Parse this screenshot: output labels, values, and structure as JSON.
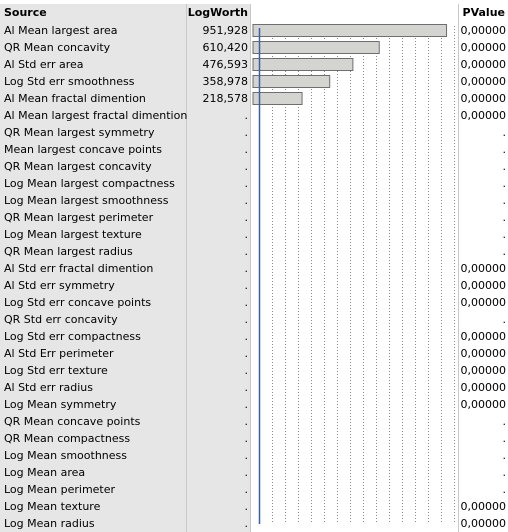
{
  "headers": {
    "source": "Source",
    "logworth": "LogWorth",
    "pvalue": "PValue"
  },
  "colors": {
    "bar_fill": "#d4d4d0",
    "bar_stroke": "#6e6e6e",
    "reference_line": "#3c5fa8",
    "grid": "#8c8c8c"
  },
  "chart_data": {
    "type": "bar",
    "orientation": "horizontal",
    "x_max": 1000,
    "categories": [
      "Al Mean largest area",
      "QR Mean concavity",
      "Al Std err area",
      "Log Std err smoothness",
      "Al Mean fractal dimention"
    ],
    "values": [
      951.928,
      610.42,
      476.593,
      358.978,
      218.578
    ],
    "grid": true
  },
  "rows": [
    {
      "source": "Al Mean largest area",
      "logworth": "951,928",
      "pvalue": "0,00000"
    },
    {
      "source": "QR Mean concavity",
      "logworth": "610,420",
      "pvalue": "0,00000"
    },
    {
      "source": "Al Std err area",
      "logworth": "476,593",
      "pvalue": "0,00000"
    },
    {
      "source": "Log Std err smoothness",
      "logworth": "358,978",
      "pvalue": "0,00000"
    },
    {
      "source": "Al Mean fractal dimention",
      "logworth": "218,578",
      "pvalue": "0,00000"
    },
    {
      "source": "Al Mean largest fractal dimention",
      "logworth": ".",
      "pvalue": "0,00000"
    },
    {
      "source": "QR Mean largest symmetry",
      "logworth": ".",
      "pvalue": "."
    },
    {
      "source": "Mean largest concave points",
      "logworth": ".",
      "pvalue": "."
    },
    {
      "source": "QR Mean largest concavity",
      "logworth": ".",
      "pvalue": "."
    },
    {
      "source": "Log Mean largest compactness",
      "logworth": ".",
      "pvalue": "."
    },
    {
      "source": "Log Mean largest smoothness",
      "logworth": ".",
      "pvalue": "."
    },
    {
      "source": "QR Mean largest perimeter",
      "logworth": ".",
      "pvalue": "."
    },
    {
      "source": "Log Mean largest texture",
      "logworth": ".",
      "pvalue": "."
    },
    {
      "source": "QR Mean largest radius",
      "logworth": ".",
      "pvalue": "."
    },
    {
      "source": "Al Std err fractal dimention",
      "logworth": ".",
      "pvalue": "0,00000"
    },
    {
      "source": "Al Std err symmetry",
      "logworth": ".",
      "pvalue": "0,00000"
    },
    {
      "source": "Log Std err concave points",
      "logworth": ".",
      "pvalue": "0,00000"
    },
    {
      "source": "QR Std err concavity",
      "logworth": ".",
      "pvalue": "."
    },
    {
      "source": "Log Std err compactness",
      "logworth": ".",
      "pvalue": "0,00000"
    },
    {
      "source": "Al Std Err perimeter",
      "logworth": ".",
      "pvalue": "0,00000"
    },
    {
      "source": "Log Std err texture",
      "logworth": ".",
      "pvalue": "0,00000"
    },
    {
      "source": "Al Std err radius",
      "logworth": ".",
      "pvalue": "0,00000"
    },
    {
      "source": "Log Mean symmetry",
      "logworth": ".",
      "pvalue": "0,00000"
    },
    {
      "source": "QR Mean concave points",
      "logworth": ".",
      "pvalue": "."
    },
    {
      "source": "QR Mean compactness",
      "logworth": ".",
      "pvalue": "."
    },
    {
      "source": "Log Mean smoothness",
      "logworth": ".",
      "pvalue": "."
    },
    {
      "source": "Log Mean area",
      "logworth": ".",
      "pvalue": "."
    },
    {
      "source": "Log Mean perimeter",
      "logworth": ".",
      "pvalue": "."
    },
    {
      "source": "Log Mean texture",
      "logworth": ".",
      "pvalue": "0,00000"
    },
    {
      "source": "Log Mean radius",
      "logworth": ".",
      "pvalue": "0,00000"
    }
  ]
}
